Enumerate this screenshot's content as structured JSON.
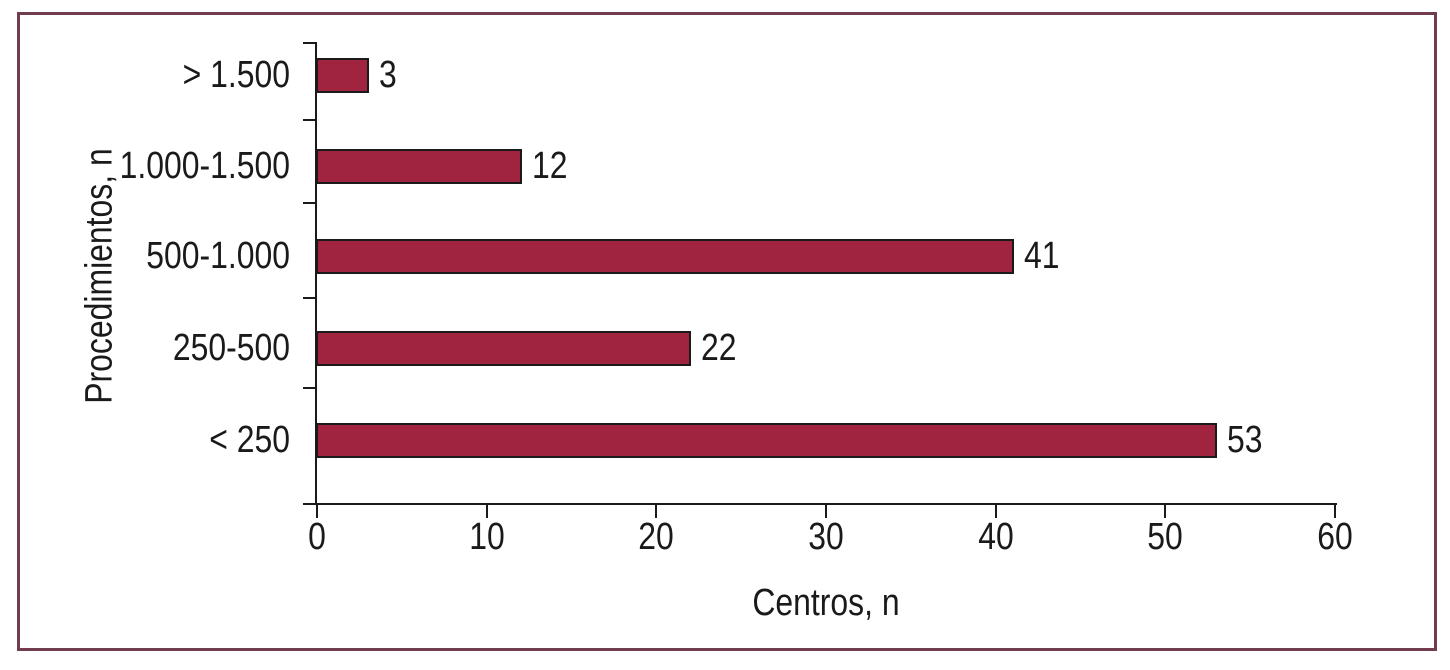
{
  "figure": {
    "background": "#ffffff",
    "frame_border_color": "#713C4E"
  },
  "chart_data": {
    "type": "bar",
    "orientation": "horizontal",
    "title": "",
    "xlabel": "Centros, n",
    "ylabel": "Procedimientos, n",
    "categories": [
      "> 1.500",
      "1.000-1.500",
      "500-1.000",
      "250-500",
      "< 250"
    ],
    "values": [
      3,
      12,
      41,
      22,
      53
    ],
    "value_labels": [
      "3",
      "12",
      "41",
      "22",
      "53"
    ],
    "x_ticks": [
      "0",
      "10",
      "20",
      "30",
      "40",
      "50",
      "60"
    ],
    "xlim": [
      0,
      60
    ],
    "grid": false,
    "legend": "none",
    "bar_color": "#A0243F",
    "bar_border_color": "#1A1A1A",
    "axis_color": "#1A1A1A",
    "text_color": "#1A1A1A"
  }
}
